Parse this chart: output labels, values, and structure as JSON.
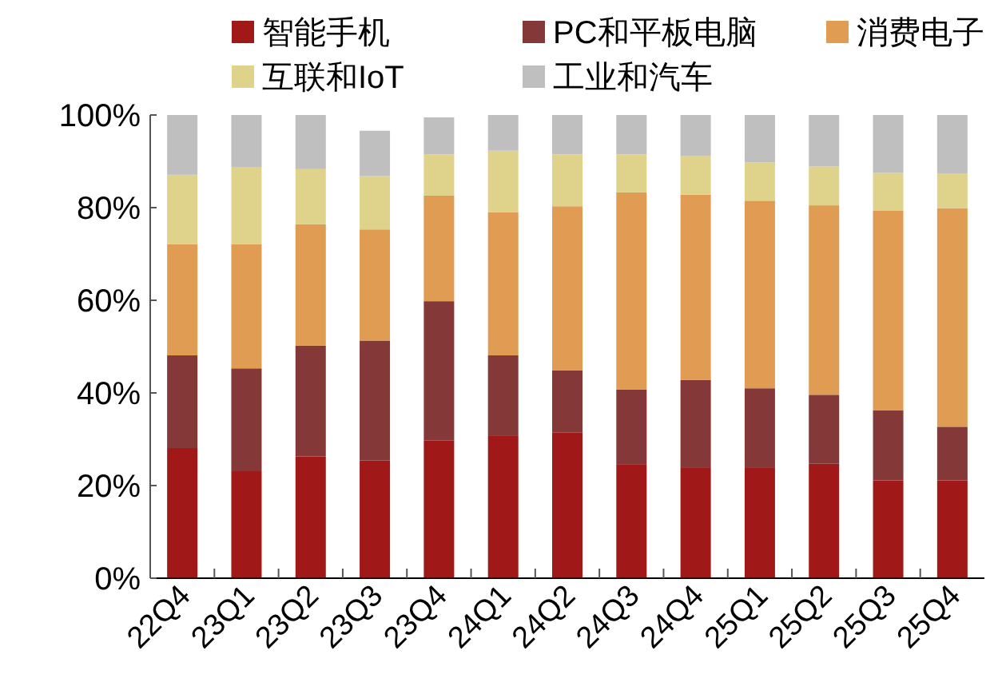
{
  "chart_data": {
    "type": "bar",
    "stacked": true,
    "legend": "top",
    "categories": [
      "22Q4",
      "23Q1",
      "23Q2",
      "23Q3",
      "23Q4",
      "24Q1",
      "24Q2",
      "24Q3",
      "24Q4",
      "25Q1",
      "25Q2",
      "25Q3",
      "25Q4"
    ],
    "ylim": [
      0,
      100
    ],
    "yticks": [
      {
        "value": 0,
        "label": "0%"
      },
      {
        "value": 20,
        "label": "20%"
      },
      {
        "value": 40,
        "label": "40%"
      },
      {
        "value": 60,
        "label": "60%"
      },
      {
        "value": 80,
        "label": "80%"
      },
      {
        "value": 100,
        "label": "100%"
      }
    ],
    "series": [
      {
        "name": "智能手机",
        "color": "#a01818",
        "values": [
          28.1,
          23.1,
          26.3,
          25.4,
          29.7,
          30.7,
          31.5,
          24.5,
          23.8,
          23.8,
          24.7,
          21.1,
          21.1
        ]
      },
      {
        "name": "PC和平板电脑",
        "color": "#843838",
        "values": [
          20.0,
          22.2,
          23.9,
          25.9,
          30.1,
          17.4,
          13.4,
          16.2,
          19.0,
          17.2,
          14.9,
          15.1,
          11.6
        ]
      },
      {
        "name": "消费电子",
        "color": "#df9c52",
        "values": [
          24.0,
          26.8,
          26.2,
          24.0,
          22.8,
          30.9,
          35.4,
          42.6,
          40.0,
          40.5,
          40.9,
          43.2,
          47.2
        ]
      },
      {
        "name": "互联和IoT",
        "color": "#dfd38c",
        "values": [
          15.0,
          16.7,
          11.9,
          11.5,
          8.9,
          13.3,
          11.2,
          8.2,
          8.4,
          8.3,
          8.4,
          8.1,
          7.4
        ]
      },
      {
        "name": "工业和汽车",
        "color": "#bfbfbf",
        "values": [
          12.9,
          11.2,
          11.7,
          9.8,
          8.0,
          7.7,
          8.5,
          8.5,
          8.8,
          10.2,
          11.1,
          12.5,
          12.7
        ]
      }
    ]
  }
}
